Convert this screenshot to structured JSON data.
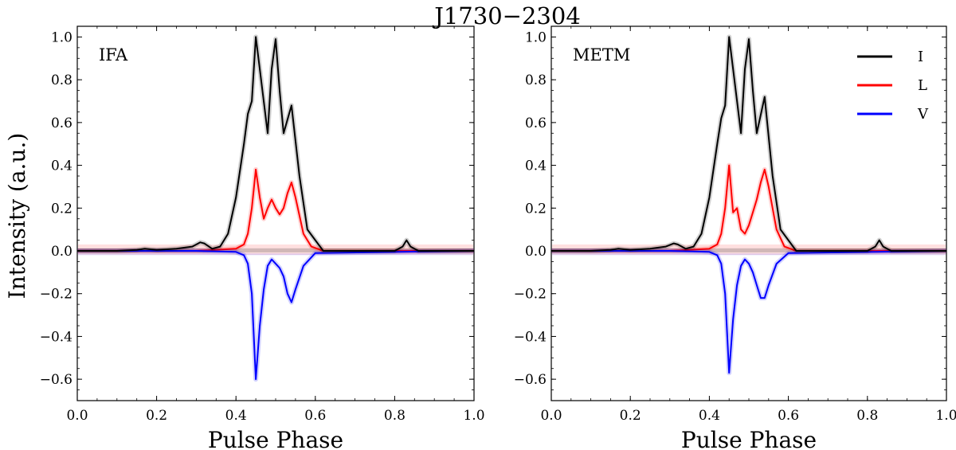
{
  "chart_data": {
    "type": "line",
    "title": "J1730−2304",
    "ylabel": "Intensity (a.u.)",
    "xlabel": "Pulse Phase",
    "xlim": [
      0.0,
      1.0
    ],
    "ylim": [
      -0.7,
      1.05
    ],
    "x_ticks": [
      0.0,
      0.2,
      0.4,
      0.6,
      0.8,
      1.0
    ],
    "x_tick_labels": [
      "0.0",
      "0.2",
      "0.4",
      "0.6",
      "0.8",
      "1.0"
    ],
    "y_ticks": [
      1.0,
      0.8,
      0.6,
      0.4,
      0.2,
      0.0,
      -0.2,
      -0.4,
      -0.6
    ],
    "y_tick_labels": [
      "1.0",
      "0.8",
      "0.6",
      "0.4",
      "0.2",
      "0.0",
      "−0.2",
      "−0.4",
      "−0.6"
    ],
    "legend": {
      "placement": "top-right",
      "entries": [
        {
          "label": "I",
          "color": "#000000"
        },
        {
          "label": "L",
          "color": "#ff0000"
        },
        {
          "label": "V",
          "color": "#0000ff"
        }
      ]
    },
    "panels": [
      {
        "label": "IFA",
        "series": [
          {
            "name": "I",
            "color": "#000000",
            "x": [
              0.0,
              0.1,
              0.15,
              0.17,
              0.2,
              0.25,
              0.29,
              0.31,
              0.32,
              0.34,
              0.36,
              0.38,
              0.4,
              0.42,
              0.43,
              0.44,
              0.45,
              0.46,
              0.48,
              0.49,
              0.5,
              0.51,
              0.52,
              0.54,
              0.56,
              0.58,
              0.6,
              0.62,
              0.64,
              0.7,
              0.8,
              0.82,
              0.83,
              0.84,
              0.86,
              0.9,
              1.0
            ],
            "y": [
              0.0,
              0.0,
              0.005,
              0.01,
              0.005,
              0.01,
              0.02,
              0.04,
              0.035,
              0.01,
              0.02,
              0.08,
              0.25,
              0.5,
              0.64,
              0.7,
              1.0,
              0.85,
              0.55,
              0.85,
              0.99,
              0.75,
              0.55,
              0.68,
              0.35,
              0.1,
              0.05,
              0.0,
              0.0,
              0.0,
              0.0,
              0.02,
              0.05,
              0.02,
              0.0,
              0.0,
              0.0
            ]
          },
          {
            "name": "L",
            "color": "#ff0000",
            "x": [
              0.0,
              0.3,
              0.4,
              0.42,
              0.43,
              0.44,
              0.45,
              0.46,
              0.47,
              0.48,
              0.49,
              0.5,
              0.51,
              0.52,
              0.53,
              0.54,
              0.55,
              0.57,
              0.59,
              0.62,
              1.0
            ],
            "y": [
              0.0,
              0.0,
              0.01,
              0.03,
              0.08,
              0.2,
              0.38,
              0.25,
              0.15,
              0.2,
              0.24,
              0.2,
              0.17,
              0.2,
              0.27,
              0.32,
              0.25,
              0.08,
              0.02,
              0.0,
              0.0
            ]
          },
          {
            "name": "V",
            "color": "#0000ff",
            "x": [
              0.0,
              0.3,
              0.4,
              0.42,
              0.43,
              0.44,
              0.45,
              0.46,
              0.47,
              0.48,
              0.49,
              0.5,
              0.51,
              0.52,
              0.53,
              0.54,
              0.55,
              0.57,
              0.6,
              1.0
            ],
            "y": [
              0.0,
              0.0,
              -0.005,
              -0.02,
              -0.06,
              -0.2,
              -0.6,
              -0.35,
              -0.18,
              -0.07,
              -0.04,
              -0.06,
              -0.08,
              -0.12,
              -0.2,
              -0.24,
              -0.18,
              -0.07,
              -0.01,
              0.0
            ]
          }
        ]
      },
      {
        "label": "METM",
        "series": [
          {
            "name": "I",
            "color": "#000000",
            "x": [
              0.0,
              0.1,
              0.15,
              0.17,
              0.2,
              0.25,
              0.29,
              0.31,
              0.32,
              0.34,
              0.36,
              0.38,
              0.4,
              0.42,
              0.43,
              0.44,
              0.45,
              0.46,
              0.48,
              0.49,
              0.5,
              0.51,
              0.52,
              0.54,
              0.56,
              0.58,
              0.6,
              0.62,
              0.64,
              0.7,
              0.8,
              0.82,
              0.83,
              0.84,
              0.86,
              0.9,
              1.0
            ],
            "y": [
              0.0,
              0.0,
              0.005,
              0.01,
              0.005,
              0.01,
              0.02,
              0.035,
              0.03,
              0.01,
              0.02,
              0.08,
              0.25,
              0.5,
              0.62,
              0.68,
              1.0,
              0.85,
              0.55,
              0.85,
              0.99,
              0.75,
              0.55,
              0.72,
              0.35,
              0.1,
              0.05,
              0.0,
              0.0,
              0.0,
              0.0,
              0.02,
              0.05,
              0.02,
              0.0,
              0.0,
              0.0
            ]
          },
          {
            "name": "L",
            "color": "#ff0000",
            "x": [
              0.0,
              0.3,
              0.4,
              0.42,
              0.43,
              0.44,
              0.45,
              0.46,
              0.47,
              0.48,
              0.49,
              0.5,
              0.51,
              0.52,
              0.53,
              0.54,
              0.55,
              0.57,
              0.59,
              0.62,
              1.0
            ],
            "y": [
              0.0,
              0.0,
              0.01,
              0.03,
              0.08,
              0.2,
              0.4,
              0.18,
              0.2,
              0.1,
              0.08,
              0.12,
              0.18,
              0.24,
              0.32,
              0.38,
              0.3,
              0.1,
              0.02,
              0.0,
              0.0
            ]
          },
          {
            "name": "V",
            "color": "#0000ff",
            "x": [
              0.0,
              0.3,
              0.4,
              0.42,
              0.43,
              0.44,
              0.45,
              0.46,
              0.47,
              0.48,
              0.49,
              0.5,
              0.51,
              0.52,
              0.53,
              0.54,
              0.55,
              0.57,
              0.6,
              1.0
            ],
            "y": [
              0.0,
              0.0,
              -0.005,
              -0.02,
              -0.06,
              -0.2,
              -0.57,
              -0.32,
              -0.16,
              -0.07,
              -0.04,
              -0.06,
              -0.1,
              -0.16,
              -0.22,
              -0.22,
              -0.16,
              -0.06,
              -0.01,
              0.0
            ]
          }
        ]
      }
    ]
  }
}
